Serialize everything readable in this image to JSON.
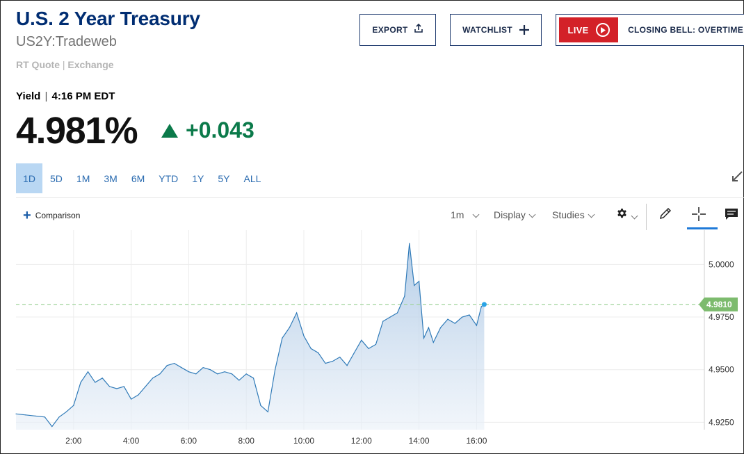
{
  "header": {
    "title": "U.S. 2 Year Treasury",
    "symbol": "US2Y:Tradeweb",
    "quote_type": "RT Quote",
    "quote_separator": "|",
    "quote_source": "Exchange"
  },
  "actions": {
    "export_label": "EXPORT",
    "watchlist_label": "WATCHLIST",
    "live_label": "LIVE",
    "live_show": "CLOSING BELL: OVERTIME"
  },
  "quote": {
    "yield_label": "Yield",
    "separator": "|",
    "time": "4:16 PM EDT",
    "price": "4.981%",
    "change": "+0.043",
    "direction": "up"
  },
  "ranges": [
    "1D",
    "5D",
    "1M",
    "3M",
    "6M",
    "YTD",
    "1Y",
    "5Y",
    "ALL"
  ],
  "active_range": "1D",
  "toolbar": {
    "comparison_label": "Comparison",
    "interval": "1m",
    "display": "Display",
    "studies": "Studies"
  },
  "icons": [
    "export-icon",
    "plus-icon",
    "play-icon",
    "expand-icon",
    "gear-icon",
    "pencil-icon",
    "crosshair-icon",
    "comment-icon"
  ],
  "colors": {
    "title": "#002d72",
    "up": "#0b7a4a",
    "live": "#d32128",
    "line": "#2f7ab8",
    "last_price_tag": "#7dbb6e",
    "active_range": "#b9d7f3"
  },
  "chart_data": {
    "type": "area",
    "series": [
      {
        "name": "",
        "x": [
          "00:00",
          "00:20",
          "00:40",
          "01:00",
          "01:15",
          "01:30",
          "01:45",
          "02:00",
          "02:15",
          "02:30",
          "02:45",
          "03:00",
          "03:15",
          "03:30",
          "03:45",
          "04:00",
          "04:15",
          "04:30",
          "04:45",
          "05:00",
          "05:15",
          "05:30",
          "05:45",
          "06:00",
          "06:15",
          "06:30",
          "06:45",
          "07:00",
          "07:15",
          "07:30",
          "07:45",
          "08:00",
          "08:15",
          "08:30",
          "08:45",
          "09:00",
          "09:15",
          "09:30",
          "09:45",
          "10:00",
          "10:15",
          "10:30",
          "10:45",
          "11:00",
          "11:15",
          "11:30",
          "11:45",
          "12:00",
          "12:15",
          "12:30",
          "12:45",
          "13:00",
          "13:15",
          "13:30",
          "13:40",
          "13:50",
          "14:00",
          "14:10",
          "14:20",
          "14:30",
          "14:45",
          "15:00",
          "15:15",
          "15:30",
          "15:45",
          "16:00",
          "16:10",
          "16:16"
        ],
        "values": [
          4.929,
          4.9285,
          4.928,
          4.9275,
          4.923,
          4.9275,
          4.93,
          4.933,
          4.944,
          4.949,
          4.944,
          4.946,
          4.942,
          4.941,
          4.942,
          4.936,
          4.938,
          4.942,
          4.946,
          4.948,
          4.952,
          4.953,
          4.951,
          4.949,
          4.948,
          4.951,
          4.95,
          4.948,
          4.949,
          4.948,
          4.945,
          4.948,
          4.946,
          4.933,
          4.93,
          4.95,
          4.965,
          4.97,
          4.977,
          4.966,
          4.96,
          4.958,
          4.953,
          4.954,
          4.956,
          4.952,
          4.958,
          4.964,
          4.96,
          4.962,
          4.973,
          4.975,
          4.977,
          4.985,
          5.01,
          4.99,
          4.992,
          4.965,
          4.97,
          4.963,
          4.97,
          4.974,
          4.972,
          4.975,
          4.976,
          4.971,
          4.98,
          4.981
        ]
      }
    ],
    "x_ticks": [
      "2:00",
      "4:00",
      "6:00",
      "8:00",
      "10:00",
      "12:00",
      "14:00",
      "16:00"
    ],
    "y_ticks": [
      "4.9250",
      "4.9500",
      "4.9750",
      "5.0000"
    ],
    "ylim": [
      4.9215,
      5.013
    ],
    "last_value_label": "4.9810",
    "grid": true,
    "reference_line": 4.981
  }
}
